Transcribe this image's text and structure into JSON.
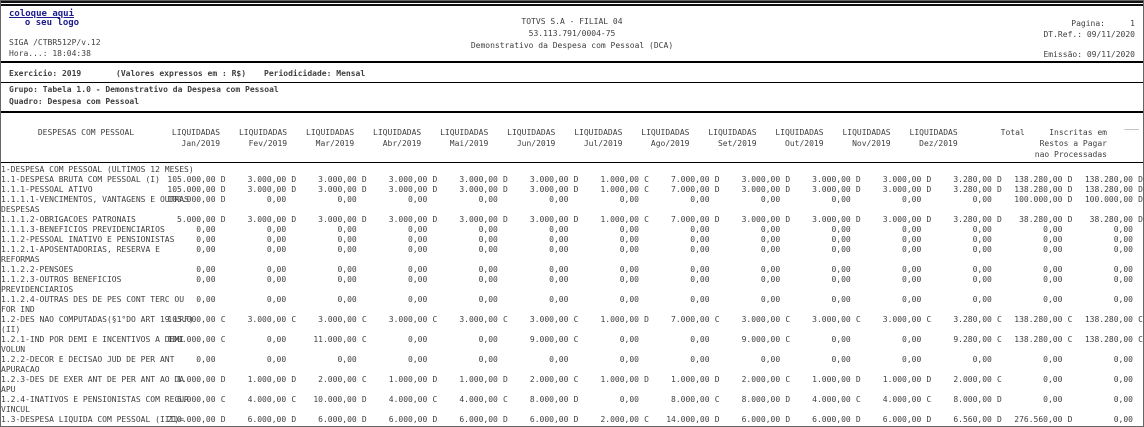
{
  "colors": {
    "logo_text": "#1c1c8e",
    "body_text": "#3f3f3f",
    "rule": "#000000"
  },
  "header": {
    "logo_line1": "coloque aqui",
    "logo_line2": "o seu logo",
    "system_id": "SIGA /CTBR512P/v.12",
    "time_label": "Hora...: 18:04:38",
    "company": "TOTVS S.A - FILIAL 04",
    "cnpj": "53.113.791/0004-75",
    "report_title": "Demonstrativo da Despesa com Pessoal (DCA)",
    "page_label": "Pagina:",
    "page_number": "1",
    "ref_date": "DT.Ref.: 09/11/2020",
    "emission": "Emissão: 09/11/2020"
  },
  "info": {
    "exercicio": "Exercicio: 2019",
    "valores": "(Valores expressos em : R$)",
    "periodicidade": "Periodicidade: Mensal",
    "grupo": "Grupo: Tabela 1.0 - Demonstrativo da Despesa com Pessoal",
    "quadro": "Quadro: Despesa com Pessoal"
  },
  "table": {
    "label_header": "DESPESAS COM PESSOAL",
    "liquidadas_label": "LIQUIDADAS",
    "months": [
      "Jan/2019",
      "Fev/2019",
      "Mar/2019",
      "Abr/2019",
      "Mai/2019",
      "Jun/2019",
      "Jul/2019",
      "Ago/2019",
      "Set/2019",
      "Out/2019",
      "Nov/2019",
      "Dez/2019"
    ],
    "total_header": "Total",
    "inscritas_lines": [
      "Inscritas em",
      "Restos a Pagar",
      "nao Processadas"
    ],
    "corner_mark": "___",
    "rows": [
      {
        "label": "1-DESPESA COM PESSOAL (ULTIMOS 12 MESES)",
        "values": [
          "",
          "",
          "",
          "",
          "",
          "",
          "",
          "",
          "",
          "",
          "",
          "",
          "",
          ""
        ]
      },
      {
        "label": "1.1-DESPESA BRUTA COM PESSOAL (I)",
        "values": [
          "105.000,00 D",
          "3.000,00 D",
          "3.000,00 D",
          "3.000,00 D",
          "3.000,00 D",
          "3.000,00 D",
          "1.000,00 C",
          "7.000,00 D",
          "3.000,00 D",
          "3.000,00 D",
          "3.000,00 D",
          "3.280,00 D",
          "138.280,00 D",
          "138.280,00 D"
        ]
      },
      {
        "label": "1.1.1-PESSOAL ATIVO",
        "values": [
          "105.000,00 D",
          "3.000,00 D",
          "3.000,00 D",
          "3.000,00 D",
          "3.000,00 D",
          "3.000,00 D",
          "1.000,00 C",
          "7.000,00 D",
          "3.000,00 D",
          "3.000,00 D",
          "3.000,00 D",
          "3.280,00 D",
          "138.280,00 D",
          "138.280,00 D"
        ]
      },
      {
        "label": "1.1.1.1-VENCIMENTOS, VANTAGENS E OUTRAS DESPESAS",
        "values": [
          "100.000,00 D",
          "0,00",
          "0,00",
          "0,00",
          "0,00",
          "0,00",
          "0,00",
          "0,00",
          "0,00",
          "0,00",
          "0,00",
          "0,00",
          "100.000,00 D",
          "100.000,00 D"
        ]
      },
      {
        "label": "1.1.1.2-OBRIGACOES PATRONAIS",
        "values": [
          "5.000,00 D",
          "3.000,00 D",
          "3.000,00 D",
          "3.000,00 D",
          "3.000,00 D",
          "3.000,00 D",
          "1.000,00 C",
          "7.000,00 D",
          "3.000,00 D",
          "3.000,00 D",
          "3.000,00 D",
          "3.280,00 D",
          "38.280,00 D",
          "38.280,00 D"
        ]
      },
      {
        "label": "1.1.1.3-BENEFICIOS PREVIDENCIARIOS",
        "values": [
          "0,00",
          "0,00",
          "0,00",
          "0,00",
          "0,00",
          "0,00",
          "0,00",
          "0,00",
          "0,00",
          "0,00",
          "0,00",
          "0,00",
          "0,00",
          "0,00"
        ]
      },
      {
        "label": "1.1.2-PESSOAL INATIVO E PENSIONISTAS",
        "values": [
          "0,00",
          "0,00",
          "0,00",
          "0,00",
          "0,00",
          "0,00",
          "0,00",
          "0,00",
          "0,00",
          "0,00",
          "0,00",
          "0,00",
          "0,00",
          "0,00"
        ]
      },
      {
        "label": "1.1.2.1-APOSENTADORIAS, RESERVA E REFORMAS",
        "values": [
          "0,00",
          "0,00",
          "0,00",
          "0,00",
          "0,00",
          "0,00",
          "0,00",
          "0,00",
          "0,00",
          "0,00",
          "0,00",
          "0,00",
          "0,00",
          "0,00"
        ]
      },
      {
        "label": "1.1.2.2-PENSOES",
        "values": [
          "0,00",
          "0,00",
          "0,00",
          "0,00",
          "0,00",
          "0,00",
          "0,00",
          "0,00",
          "0,00",
          "0,00",
          "0,00",
          "0,00",
          "0,00",
          "0,00"
        ]
      },
      {
        "label": "1.1.2.3-OUTROS BENEFICIOS PREVIDENCIARIOS",
        "values": [
          "0,00",
          "0,00",
          "0,00",
          "0,00",
          "0,00",
          "0,00",
          "0,00",
          "0,00",
          "0,00",
          "0,00",
          "0,00",
          "0,00",
          "0,00",
          "0,00"
        ]
      },
      {
        "label": "1.1.2.4-OUTRAS DES DE PES CONT TERC OU FOR IND",
        "values": [
          "0,00",
          "0,00",
          "0,00",
          "0,00",
          "0,00",
          "0,00",
          "0,00",
          "0,00",
          "0,00",
          "0,00",
          "0,00",
          "0,00",
          "0,00",
          "0,00"
        ]
      },
      {
        "label": "1.2-DES NAO COMPUTADAS(§1°DO ART 19 LRF)(II)",
        "values": [
          "105.000,00 C",
          "3.000,00 C",
          "3.000,00 C",
          "3.000,00 C",
          "3.000,00 C",
          "3.000,00 C",
          "1.000,00 D",
          "7.000,00 C",
          "3.000,00 C",
          "3.000,00 C",
          "3.000,00 C",
          "3.280,00 C",
          "138.280,00 C",
          "138.280,00 C"
        ]
      },
      {
        "label": "1.2.1-IND POR DEMI E INCENTIVOS A DEMI VOLUN",
        "values": [
          "100.000,00 C",
          "0,00",
          "11.000,00 C",
          "0,00",
          "0,00",
          "9.000,00 C",
          "0,00",
          "0,00",
          "9.000,00 C",
          "0,00",
          "0,00",
          "9.280,00 C",
          "138.280,00 C",
          "138.280,00 C"
        ]
      },
      {
        "label": "1.2.2-DECOR E DECISAO JUD DE PER ANT APURACAO",
        "values": [
          "0,00",
          "0,00",
          "0,00",
          "0,00",
          "0,00",
          "0,00",
          "0,00",
          "0,00",
          "0,00",
          "0,00",
          "0,00",
          "0,00",
          "0,00",
          "0,00"
        ]
      },
      {
        "label": "1.2.3-DES DE EXER ANT DE PER ANT AO DA APU",
        "values": [
          "1.000,00 D",
          "1.000,00 D",
          "2.000,00 C",
          "1.000,00 D",
          "1.000,00 D",
          "2.000,00 C",
          "1.000,00 D",
          "1.000,00 D",
          "2.000,00 C",
          "1.000,00 D",
          "1.000,00 D",
          "2.000,00 C",
          "0,00",
          "0,00"
        ]
      },
      {
        "label": "1.2.4-INATIVOS E PENSIONISTAS COM RECUR VINCUL",
        "values": [
          "6.000,00 C",
          "4.000,00 C",
          "10.000,00 D",
          "4.000,00 C",
          "4.000,00 C",
          "8.000,00 D",
          "0,00",
          "8.000,00 C",
          "8.000,00 D",
          "4.000,00 C",
          "4.000,00 C",
          "8.000,00 D",
          "0,00",
          "0,00"
        ]
      },
      {
        "label": "1.3-DESPESA LIQUIDA COM PESSOAL (III)=(I-II)",
        "values": [
          "210.000,00 D",
          "6.000,00 D",
          "6.000,00 D",
          "6.000,00 D",
          "6.000,00 D",
          "6.000,00 D",
          "2.000,00 C",
          "14.000,00 D",
          "6.000,00 D",
          "6.000,00 D",
          "6.000,00 D",
          "6.560,00 D",
          "276.560,00 D",
          "0,00"
        ]
      }
    ]
  }
}
